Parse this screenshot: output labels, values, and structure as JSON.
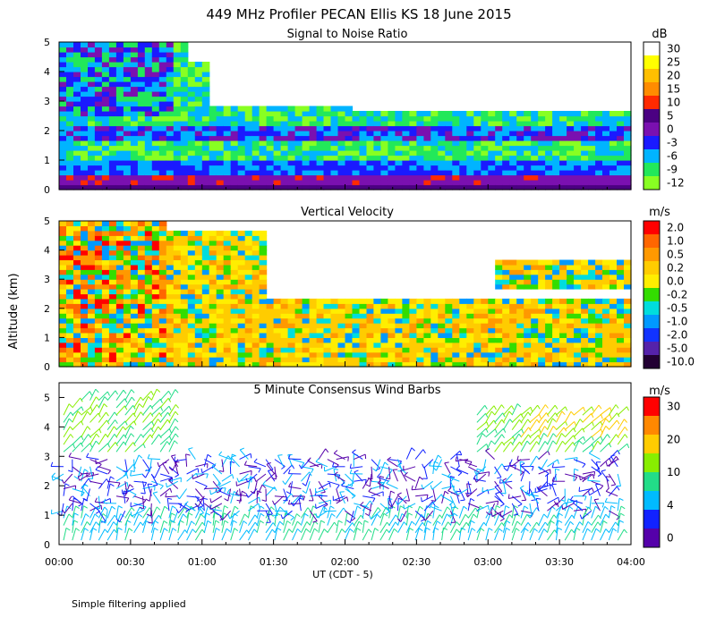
{
  "figure": {
    "title": "449 MHz Profiler PECAN Ellis KS 18 June 2015",
    "y_axis_label": "Altitude (km)",
    "x_axis_label": "UT  (CDT - 5)",
    "footnote": "Simple filtering applied"
  },
  "chart_data": [
    {
      "type": "heatmap",
      "title": "Signal to Noise Ratio",
      "colorbar_unit": "dB",
      "colorbar_labels": [
        "30",
        "25",
        "20",
        "15",
        "10",
        "5",
        "0",
        "-3",
        "-6",
        "-9",
        "-12"
      ],
      "colorbar_colors": [
        "#ffffff",
        "#ffff00",
        "#ffbf00",
        "#ff8c00",
        "#ff2a00",
        "#4b0082",
        "#7a10b0",
        "#1a1aff",
        "#00b4ff",
        "#22e85a",
        "#88ff22"
      ],
      "x_ticks": [
        "00:00",
        "00:30",
        "01:00",
        "01:30",
        "02:00",
        "02:30",
        "03:00",
        "03:30",
        "04:00"
      ],
      "y_ticks": [
        "0",
        "1",
        "2",
        "3",
        "4",
        "5"
      ],
      "xlim": [
        "00:00",
        "04:00"
      ],
      "ylim": [
        0,
        5
      ]
    },
    {
      "type": "heatmap",
      "title": "Vertical Velocity",
      "colorbar_unit": "m/s",
      "colorbar_labels": [
        "2.0",
        "1.0",
        "0.5",
        "0.2",
        "0.0",
        "-0.2",
        "-0.5",
        "-1.0",
        "-2.0",
        "-5.0",
        "-10.0"
      ],
      "colorbar_colors": [
        "#ff0000",
        "#ff6600",
        "#ff9900",
        "#ffcc00",
        "#ffee00",
        "#33dd00",
        "#00dddd",
        "#0099ff",
        "#1133ff",
        "#5522aa",
        "#220033"
      ],
      "x_ticks": [
        "00:00",
        "00:30",
        "01:00",
        "01:30",
        "02:00",
        "02:30",
        "03:00",
        "03:30",
        "04:00"
      ],
      "y_ticks": [
        "0",
        "1",
        "2",
        "3",
        "4",
        "5"
      ],
      "xlim": [
        "00:00",
        "04:00"
      ],
      "ylim": [
        0,
        5
      ]
    },
    {
      "type": "scatter",
      "title": "5 Minute Consensus Wind Barbs",
      "colorbar_unit": "m/s",
      "colorbar_labels": [
        "30",
        "20",
        "10",
        "4",
        "0"
      ],
      "colorbar_colors": [
        "#ff0000",
        "#ff8800",
        "#ffcc00",
        "#88ee00",
        "#22dd88",
        "#00bbff",
        "#1122ff",
        "#5500aa"
      ],
      "x_ticks": [
        "00:00",
        "00:30",
        "01:00",
        "01:30",
        "02:00",
        "02:30",
        "03:00",
        "03:30",
        "04:00"
      ],
      "y_ticks": [
        "0",
        "1",
        "2",
        "3",
        "4",
        "5"
      ],
      "xlim": [
        "00:00",
        "04:00"
      ],
      "ylim": [
        0,
        5.5
      ]
    }
  ]
}
